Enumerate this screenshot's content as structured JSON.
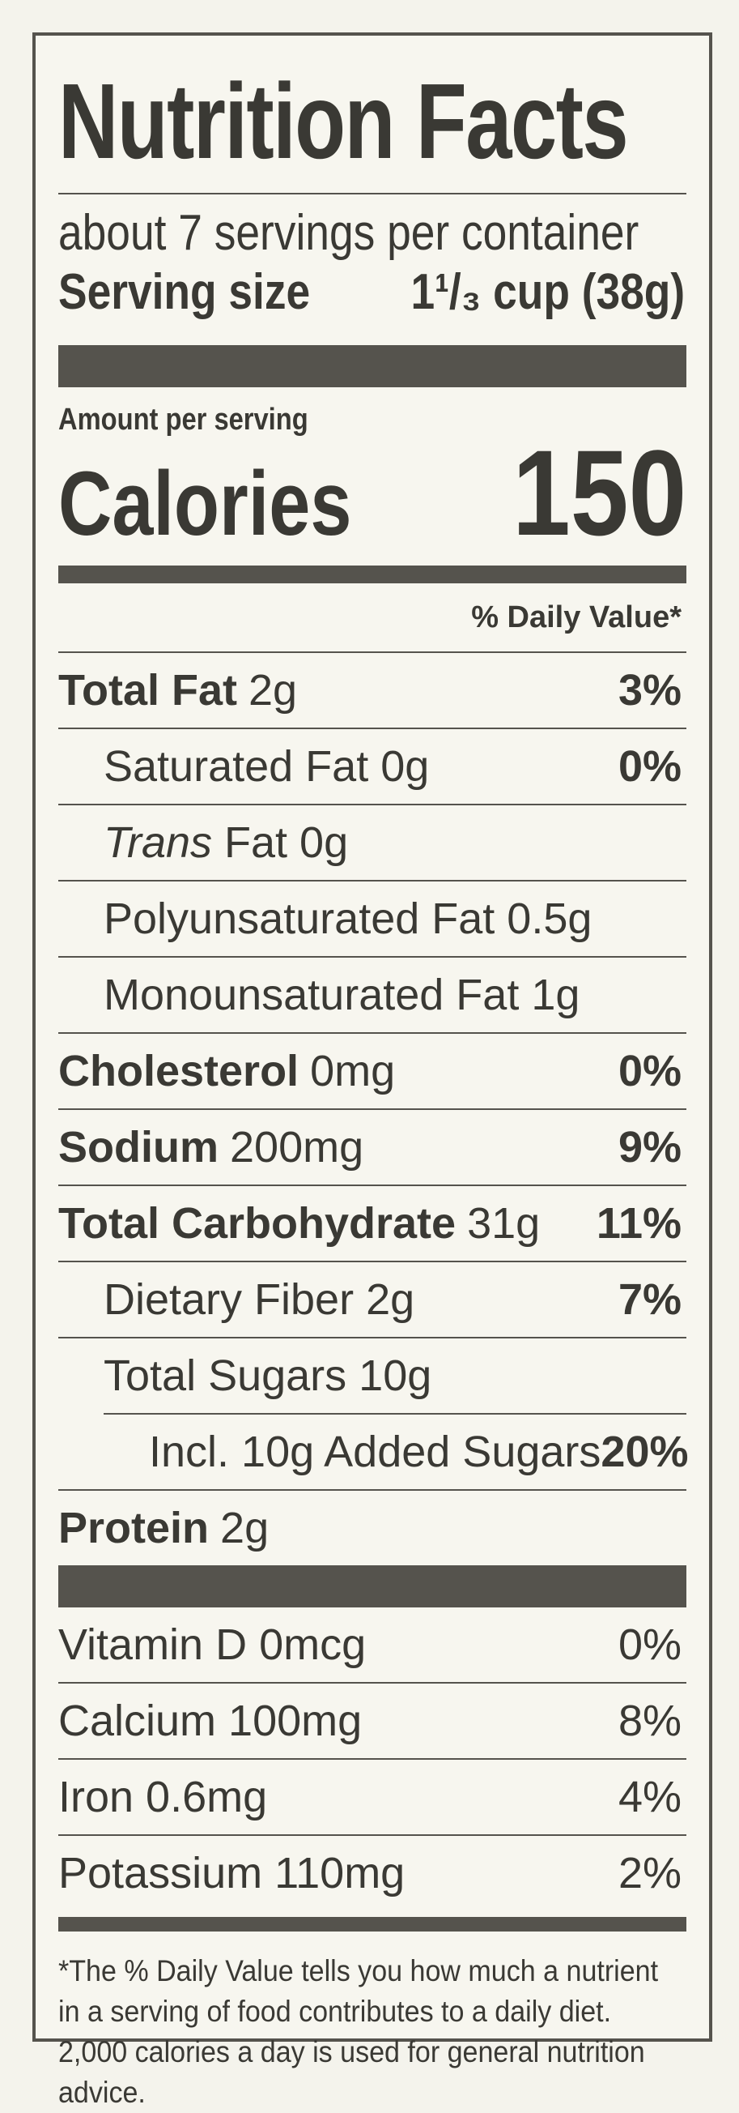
{
  "title": "Nutrition Facts",
  "servings": "about 7 servings per container",
  "serving_size": {
    "label": "Serving size",
    "value": "1¹/₃ cup (38g)"
  },
  "amount_per_serving": "Amount per serving",
  "calories": {
    "label": "Calories",
    "value": "150"
  },
  "dv_header": "% Daily Value*",
  "nutrients": [
    {
      "name": "Total Fat",
      "amount": "2g",
      "dv": "3%",
      "bold": true,
      "indent": 0
    },
    {
      "name": "Saturated Fat 0g",
      "amount": "",
      "dv": "0%",
      "bold": false,
      "indent": 1
    },
    {
      "name_italic": "Trans",
      "name": " Fat 0g",
      "amount": "",
      "dv": "",
      "bold": false,
      "indent": 1
    },
    {
      "name": "Polyunsaturated Fat 0.5g",
      "amount": "",
      "dv": "",
      "bold": false,
      "indent": 1
    },
    {
      "name": "Monounsaturated Fat 1g",
      "amount": "",
      "dv": "",
      "bold": false,
      "indent": 1
    },
    {
      "name": "Cholesterol",
      "amount": "0mg",
      "dv": "0%",
      "bold": true,
      "indent": 0
    },
    {
      "name": "Sodium",
      "amount": "200mg",
      "dv": "9%",
      "bold": true,
      "indent": 0
    },
    {
      "name": "Total Carbohydrate",
      "amount": "31g",
      "dv": "11%",
      "bold": true,
      "indent": 0
    },
    {
      "name": "Dietary Fiber 2g",
      "amount": "",
      "dv": "7%",
      "bold": false,
      "indent": 1
    },
    {
      "name": "Total Sugars 10g",
      "amount": "",
      "dv": "",
      "bold": false,
      "indent": 1
    },
    {
      "name": "Incl. 10g Added Sugars",
      "amount": "",
      "dv": "20%",
      "bold": false,
      "indent": 2
    },
    {
      "name": "Protein",
      "amount": "2g",
      "dv": "",
      "bold": true,
      "indent": 0
    }
  ],
  "vitamins": [
    {
      "name": "Vitamin D 0mcg",
      "dv": "0%"
    },
    {
      "name": "Calcium 100mg",
      "dv": "8%"
    },
    {
      "name": "Iron 0.6mg",
      "dv": "4%"
    },
    {
      "name": "Potassium 110mg",
      "dv": "2%"
    }
  ],
  "footnote": "*The % Daily Value tells you how much a nutrient in a serving of food contributes to a daily diet. 2,000 calories a day is used for general nutrition advice."
}
